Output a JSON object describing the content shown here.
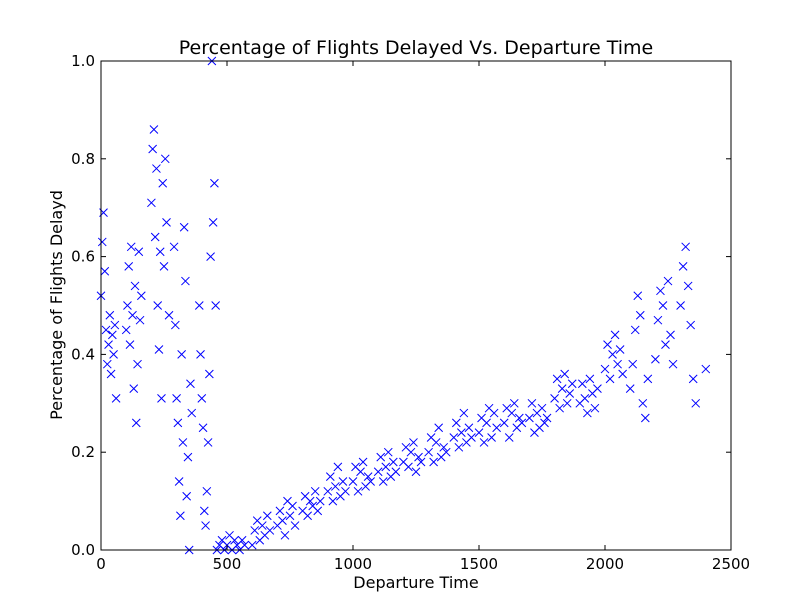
{
  "chart_data": {
    "type": "scatter",
    "title": "Percentage of Flights Delayed Vs. Departure Time",
    "xlabel": "Departure Time",
    "ylabel": "Percentage of Flights Delayd",
    "xlim": [
      0,
      2500
    ],
    "ylim": [
      0,
      1.0
    ],
    "xticks": [
      "0",
      "500",
      "1000",
      "1500",
      "2000",
      "2500"
    ],
    "yticks": [
      "0.0",
      "0.2",
      "0.4",
      "0.6",
      "0.8",
      "1.0"
    ],
    "marker": "x",
    "grid": false,
    "color": "#0000ff",
    "series": [
      {
        "x": [
          0,
          5,
          10,
          15,
          20,
          25,
          30,
          35,
          40,
          45,
          50,
          55,
          60,
          100,
          105,
          110,
          115,
          120,
          125,
          130,
          135,
          140,
          145,
          150,
          155,
          160,
          200,
          205,
          210,
          215,
          220,
          225,
          230,
          235,
          240,
          245,
          250,
          255,
          260,
          270,
          290,
          295,
          300,
          305,
          310,
          315,
          320,
          325,
          330,
          335,
          340,
          345,
          350,
          355,
          360,
          390,
          395,
          400,
          405,
          410,
          415,
          420,
          425,
          430,
          435,
          440,
          445,
          450,
          455,
          460,
          470,
          480,
          490,
          500,
          510,
          520,
          530,
          540,
          550,
          560,
          570,
          600,
          610,
          620,
          630,
          640,
          650,
          660,
          670,
          700,
          710,
          720,
          730,
          740,
          750,
          760,
          770,
          800,
          810,
          820,
          830,
          840,
          850,
          860,
          870,
          900,
          910,
          920,
          930,
          940,
          950,
          960,
          970,
          1000,
          1010,
          1020,
          1030,
          1040,
          1050,
          1060,
          1070,
          1100,
          1110,
          1120,
          1130,
          1140,
          1150,
          1160,
          1170,
          1200,
          1210,
          1220,
          1230,
          1240,
          1250,
          1260,
          1270,
          1300,
          1310,
          1320,
          1330,
          1340,
          1350,
          1360,
          1370,
          1400,
          1410,
          1420,
          1430,
          1440,
          1450,
          1460,
          1470,
          1500,
          1510,
          1520,
          1530,
          1540,
          1550,
          1560,
          1570,
          1600,
          1610,
          1620,
          1630,
          1640,
          1650,
          1660,
          1670,
          1700,
          1710,
          1720,
          1730,
          1740,
          1750,
          1760,
          1770,
          1800,
          1810,
          1820,
          1830,
          1840,
          1850,
          1860,
          1870,
          1900,
          1910,
          1920,
          1930,
          1940,
          1950,
          1960,
          1970,
          2000,
          2010,
          2020,
          2030,
          2040,
          2050,
          2060,
          2070,
          2100,
          2110,
          2120,
          2130,
          2140,
          2150,
          2160,
          2170,
          2200,
          2210,
          2220,
          2230,
          2240,
          2250,
          2260,
          2270,
          2300,
          2310,
          2320,
          2330,
          2340,
          2350,
          2360,
          2400
        ],
        "y": [
          0.52,
          0.63,
          0.69,
          0.57,
          0.45,
          0.38,
          0.42,
          0.48,
          0.36,
          0.44,
          0.4,
          0.46,
          0.31,
          0.45,
          0.5,
          0.58,
          0.42,
          0.62,
          0.48,
          0.33,
          0.54,
          0.26,
          0.38,
          0.61,
          0.47,
          0.52,
          0.71,
          0.82,
          0.86,
          0.64,
          0.78,
          0.5,
          0.41,
          0.61,
          0.31,
          0.75,
          0.58,
          0.8,
          0.67,
          0.48,
          0.62,
          0.46,
          0.31,
          0.26,
          0.14,
          0.07,
          0.4,
          0.22,
          0.66,
          0.55,
          0.11,
          0.19,
          0.0,
          0.34,
          0.28,
          0.5,
          0.4,
          0.31,
          0.25,
          0.08,
          0.05,
          0.12,
          0.22,
          0.36,
          0.6,
          1.0,
          0.67,
          0.75,
          0.5,
          0.0,
          0.01,
          0.02,
          0.0,
          0.01,
          0.03,
          0.0,
          0.02,
          0.01,
          0.0,
          0.02,
          0.01,
          0.01,
          0.04,
          0.06,
          0.02,
          0.05,
          0.03,
          0.07,
          0.04,
          0.05,
          0.08,
          0.06,
          0.03,
          0.1,
          0.07,
          0.09,
          0.05,
          0.08,
          0.11,
          0.07,
          0.1,
          0.09,
          0.12,
          0.08,
          0.1,
          0.12,
          0.15,
          0.1,
          0.13,
          0.17,
          0.11,
          0.14,
          0.12,
          0.14,
          0.17,
          0.12,
          0.16,
          0.18,
          0.13,
          0.15,
          0.14,
          0.16,
          0.19,
          0.14,
          0.17,
          0.2,
          0.15,
          0.18,
          0.16,
          0.18,
          0.21,
          0.17,
          0.2,
          0.22,
          0.16,
          0.19,
          0.18,
          0.2,
          0.23,
          0.18,
          0.22,
          0.25,
          0.19,
          0.21,
          0.2,
          0.23,
          0.26,
          0.21,
          0.24,
          0.28,
          0.22,
          0.25,
          0.23,
          0.24,
          0.27,
          0.22,
          0.26,
          0.29,
          0.23,
          0.28,
          0.25,
          0.26,
          0.29,
          0.23,
          0.28,
          0.3,
          0.25,
          0.27,
          0.26,
          0.27,
          0.3,
          0.24,
          0.28,
          0.25,
          0.29,
          0.26,
          0.27,
          0.31,
          0.35,
          0.29,
          0.33,
          0.36,
          0.3,
          0.32,
          0.34,
          0.3,
          0.34,
          0.31,
          0.28,
          0.35,
          0.32,
          0.29,
          0.33,
          0.37,
          0.42,
          0.35,
          0.4,
          0.44,
          0.38,
          0.41,
          0.36,
          0.33,
          0.38,
          0.45,
          0.52,
          0.48,
          0.3,
          0.27,
          0.35,
          0.39,
          0.47,
          0.53,
          0.5,
          0.42,
          0.55,
          0.44,
          0.38,
          0.5,
          0.58,
          0.62,
          0.54,
          0.46,
          0.35,
          0.3,
          0.37
        ]
      }
    ]
  }
}
